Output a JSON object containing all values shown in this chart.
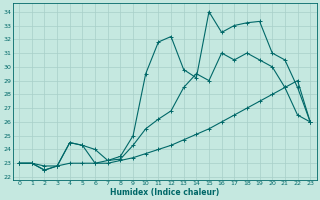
{
  "xlabel": "Humidex (Indice chaleur)",
  "background_color": "#c5e8e0",
  "grid_color": "#a8cfc8",
  "line_color": "#006868",
  "xlim": [
    -0.5,
    23.5
  ],
  "ylim": [
    21.8,
    34.6
  ],
  "yticks": [
    22,
    23,
    24,
    25,
    26,
    27,
    28,
    29,
    30,
    31,
    32,
    33,
    34
  ],
  "xticks": [
    0,
    1,
    2,
    3,
    4,
    5,
    6,
    7,
    8,
    9,
    10,
    11,
    12,
    13,
    14,
    15,
    16,
    17,
    18,
    19,
    20,
    21,
    22,
    23
  ],
  "curve1_x": [
    0,
    1,
    2,
    3,
    4,
    5,
    6,
    7,
    8,
    9,
    10,
    11,
    12,
    13,
    14,
    15,
    16,
    17,
    18,
    19,
    20,
    21,
    22,
    23
  ],
  "curve1_y": [
    23.0,
    23.0,
    22.8,
    22.8,
    23.0,
    23.0,
    23.0,
    23.0,
    23.2,
    23.4,
    23.7,
    24.0,
    24.3,
    24.7,
    25.1,
    25.5,
    26.0,
    26.5,
    27.0,
    27.5,
    28.0,
    28.5,
    29.0,
    26.0
  ],
  "curve2_x": [
    0,
    1,
    2,
    3,
    4,
    5,
    6,
    7,
    8,
    9,
    10,
    11,
    12,
    13,
    14,
    15,
    16,
    17,
    18,
    19,
    20,
    21,
    22,
    23
  ],
  "curve2_y": [
    23.0,
    23.0,
    22.5,
    22.8,
    24.5,
    24.3,
    24.0,
    23.2,
    23.3,
    24.3,
    25.5,
    26.2,
    26.8,
    28.5,
    29.5,
    29.0,
    31.0,
    30.5,
    31.0,
    30.5,
    30.0,
    28.5,
    26.5,
    26.0
  ],
  "curve3_x": [
    0,
    1,
    2,
    3,
    4,
    5,
    6,
    7,
    8,
    9,
    10,
    11,
    12,
    13,
    14,
    15,
    16,
    17,
    18,
    19,
    20,
    21,
    22,
    23
  ],
  "curve3_y": [
    23.0,
    23.0,
    22.5,
    22.8,
    24.5,
    24.3,
    23.0,
    23.2,
    23.5,
    25.0,
    29.5,
    31.8,
    32.2,
    29.8,
    29.2,
    34.0,
    32.5,
    33.0,
    33.2,
    33.3,
    31.0,
    30.5,
    28.5,
    26.0
  ]
}
